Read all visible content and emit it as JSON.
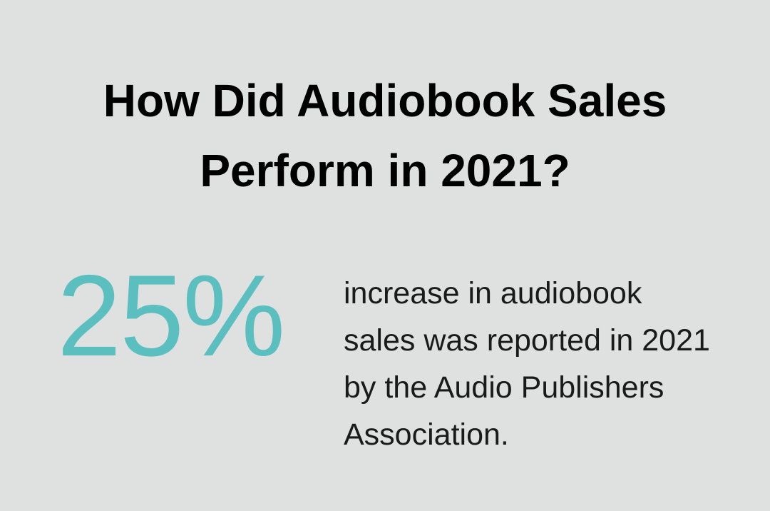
{
  "title": "How Did Audiobook Sales Perform in 2021?",
  "stat": {
    "value": "25%",
    "description": "increase in audiobook sales was reported in 2021 by the Audio Publishers Association."
  }
}
